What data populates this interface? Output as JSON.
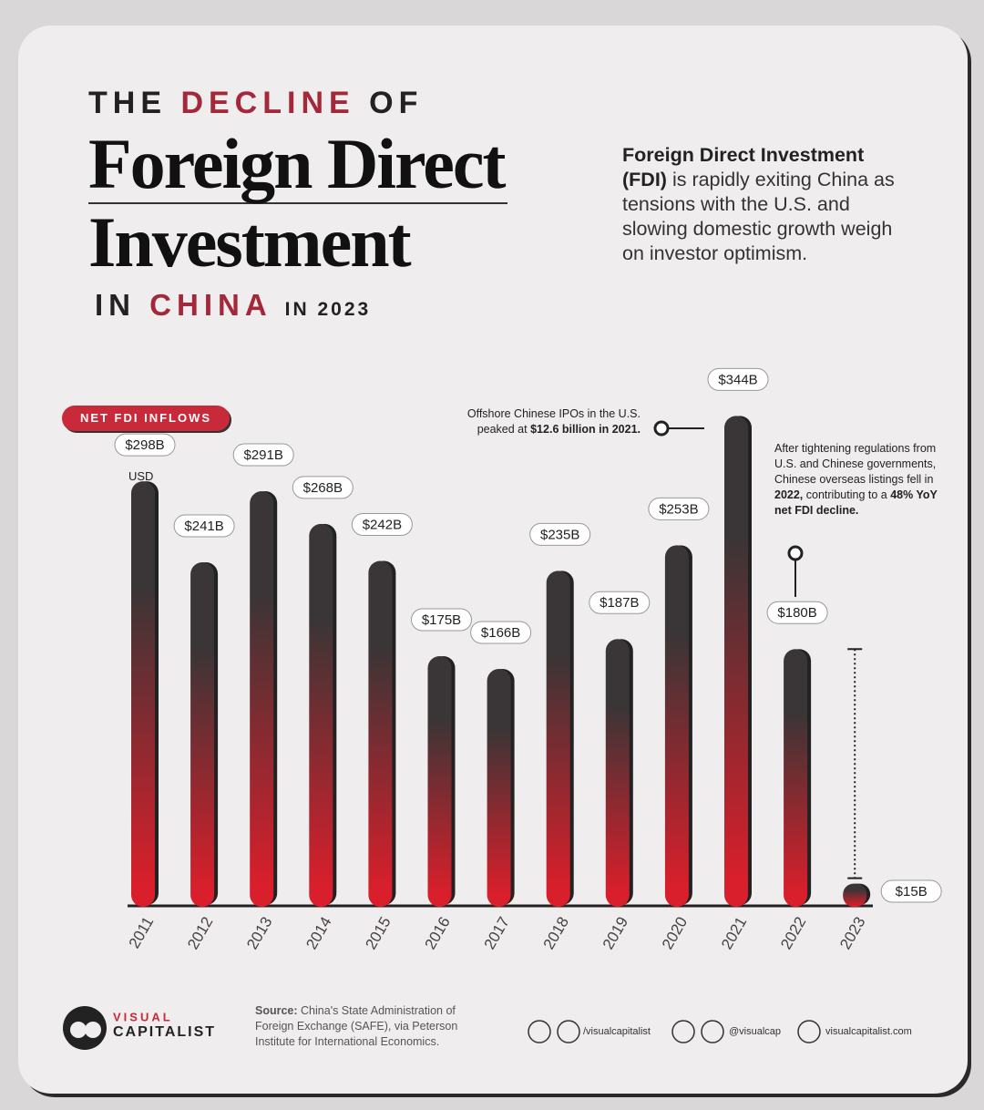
{
  "chart_data": {
    "type": "bar",
    "title": {
      "pre": "THE",
      "highlight": "DECLINE",
      "of": "OF",
      "main": [
        "Foreign Direct",
        "Investment"
      ],
      "in": "IN",
      "country": "CHINA",
      "year": "IN 2023"
    },
    "description": {
      "bold": "Foreign Direct Investment (FDI)",
      "text": "is rapidly exiting China as tensions with the U.S. and slowing domestic growth weigh on investor optimism."
    },
    "badge": "NET FDI INFLOWS",
    "unit_note": "USD",
    "categories": [
      "2011",
      "2012",
      "2013",
      "2014",
      "2015",
      "2016",
      "2017",
      "2018",
      "2019",
      "2020",
      "2021",
      "2022",
      "2023"
    ],
    "values": [
      298,
      241,
      291,
      268,
      242,
      175,
      166,
      235,
      187,
      253,
      344,
      180,
      15
    ],
    "value_labels": [
      "$298B",
      "$241B",
      "$291B",
      "$268B",
      "$242B",
      "$175B",
      "$166B",
      "$235B",
      "$187B",
      "$253B",
      "$344B",
      "$180B",
      "$15B"
    ],
    "color_top": "#3a3536",
    "color_bottom": "#d91f2b",
    "annotations": [
      {
        "text": "Offshore Chinese IPOs in the U.S. peaked at",
        "bold": "$12.6 billion in 2021."
      },
      {
        "text": "After tightening regulations from U.S. and Chinese governments, Chinese overseas listings fell in",
        "bold": "2022,",
        "text2": "contributing to a",
        "bold2": "48% YoY net FDI decline."
      }
    ],
    "footer": {
      "logo": [
        "VISUAL",
        "CAPITALIST"
      ],
      "source_label": "Source:",
      "source": "China's State Administration of Foreign Exchange (SAFE), via Peterson Institute for International Economics.",
      "social": [
        "/visualcapitalist",
        "@visualcap",
        "visualcapitalist.com"
      ]
    }
  }
}
